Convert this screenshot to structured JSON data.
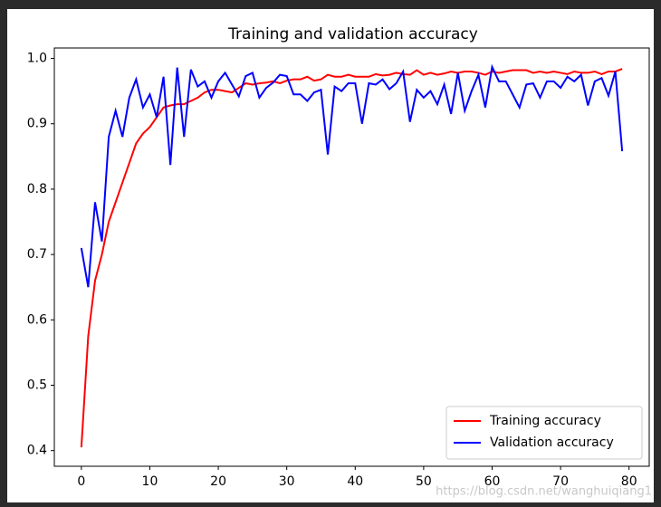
{
  "chart_data": {
    "type": "line",
    "title": "Training and validation accuracy",
    "x": [
      0,
      1,
      2,
      3,
      4,
      5,
      6,
      7,
      8,
      9,
      10,
      11,
      12,
      13,
      14,
      15,
      16,
      17,
      18,
      19,
      20,
      21,
      22,
      23,
      24,
      25,
      26,
      27,
      28,
      29,
      30,
      31,
      32,
      33,
      34,
      35,
      36,
      37,
      38,
      39,
      40,
      41,
      42,
      43,
      44,
      45,
      46,
      47,
      48,
      49,
      50,
      51,
      52,
      53,
      54,
      55,
      56,
      57,
      58,
      59,
      60,
      61,
      62,
      63,
      64,
      65,
      66,
      67,
      68,
      69,
      70,
      71,
      72,
      73,
      74,
      75,
      76,
      77,
      78,
      79
    ],
    "series": [
      {
        "name": "Training accuracy",
        "color": "#ff0000",
        "values": [
          0.405,
          0.575,
          0.66,
          0.7,
          0.75,
          0.78,
          0.81,
          0.84,
          0.87,
          0.885,
          0.895,
          0.91,
          0.925,
          0.928,
          0.93,
          0.93,
          0.935,
          0.94,
          0.948,
          0.952,
          0.952,
          0.95,
          0.948,
          0.955,
          0.962,
          0.96,
          0.962,
          0.963,
          0.965,
          0.962,
          0.966,
          0.968,
          0.968,
          0.972,
          0.966,
          0.968,
          0.975,
          0.972,
          0.972,
          0.975,
          0.972,
          0.972,
          0.972,
          0.976,
          0.974,
          0.975,
          0.978,
          0.976,
          0.975,
          0.982,
          0.975,
          0.978,
          0.975,
          0.977,
          0.98,
          0.978,
          0.98,
          0.98,
          0.978,
          0.975,
          0.98,
          0.978,
          0.98,
          0.982,
          0.982,
          0.982,
          0.978,
          0.98,
          0.978,
          0.98,
          0.978,
          0.976,
          0.98,
          0.978,
          0.978,
          0.98,
          0.976,
          0.98,
          0.98,
          0.984
        ]
      },
      {
        "name": "Validation accuracy",
        "color": "#0000ff",
        "values": [
          0.71,
          0.65,
          0.78,
          0.72,
          0.88,
          0.92,
          0.88,
          0.94,
          0.968,
          0.925,
          0.945,
          0.91,
          0.972,
          0.837,
          0.986,
          0.88,
          0.983,
          0.957,
          0.965,
          0.94,
          0.965,
          0.978,
          0.96,
          0.942,
          0.973,
          0.978,
          0.94,
          0.955,
          0.963,
          0.975,
          0.973,
          0.945,
          0.945,
          0.935,
          0.948,
          0.952,
          0.853,
          0.957,
          0.95,
          0.962,
          0.962,
          0.9,
          0.962,
          0.96,
          0.968,
          0.953,
          0.962,
          0.98,
          0.903,
          0.952,
          0.94,
          0.95,
          0.93,
          0.96,
          0.915,
          0.978,
          0.92,
          0.95,
          0.975,
          0.925,
          0.987,
          0.965,
          0.965,
          0.945,
          0.925,
          0.96,
          0.962,
          0.94,
          0.965,
          0.965,
          0.955,
          0.972,
          0.965,
          0.975,
          0.928,
          0.965,
          0.97,
          0.943,
          0.98,
          0.858
        ]
      }
    ],
    "xlim": [
      -3.95,
      82.95
    ],
    "xticks": [
      0,
      10,
      20,
      30,
      40,
      50,
      60,
      70,
      80
    ],
    "ylim": [
      0.376,
      1.016
    ],
    "yticks": [
      {
        "value": 0.4,
        "label": "0.4"
      },
      {
        "value": 0.5,
        "label": "0.5"
      },
      {
        "value": 0.6,
        "label": "0.6"
      },
      {
        "value": 0.7,
        "label": "0.7"
      },
      {
        "value": 0.8,
        "label": "0.8"
      },
      {
        "value": 0.9,
        "label": "0.9"
      },
      {
        "value": 1.0,
        "label": "1.0"
      }
    ],
    "legend": "lower right",
    "grid": false,
    "watermark": "https://blog.csdn.net/wanghuiqiang1"
  }
}
